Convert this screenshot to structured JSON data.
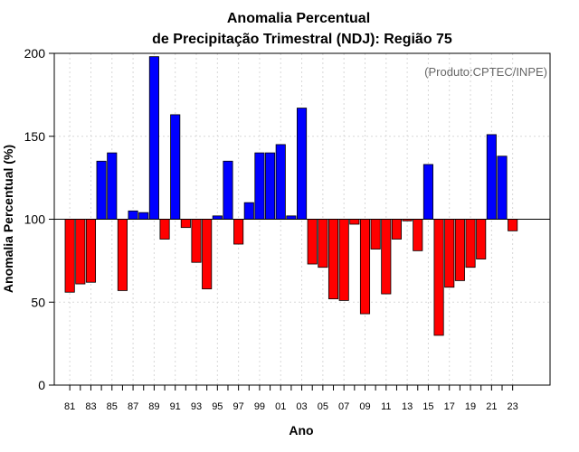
{
  "chart_data": {
    "type": "bar",
    "title": [
      "Anomalia Percentual",
      "de Precipitação Trimestral (NDJ): Região 75"
    ],
    "credit": "(Produto:CPTEC/INPE)",
    "xlabel": "Ano",
    "ylabel": "Anomalia Percentual (%)",
    "ylim": [
      0,
      200
    ],
    "yticks": [
      "0",
      "50",
      "100",
      "150",
      "200"
    ],
    "baseline": 100,
    "grid": true,
    "colors": {
      "above": "#0000ff",
      "below": "#ff0000",
      "grid": "#d8d8d8",
      "frame": "#000000"
    },
    "xtick_labels": [
      "81",
      "83",
      "85",
      "87",
      "89",
      "91",
      "93",
      "95",
      "97",
      "99",
      "01",
      "03",
      "05",
      "07",
      "09",
      "11",
      "13",
      "15",
      "17",
      "19",
      "21",
      "23"
    ],
    "categories": [
      "81",
      "82",
      "83",
      "84",
      "85",
      "86",
      "87",
      "88",
      "89",
      "90",
      "91",
      "92",
      "93",
      "94",
      "95",
      "96",
      "97",
      "98",
      "99",
      "00",
      "01",
      "02",
      "03",
      "04",
      "05",
      "06",
      "07",
      "08",
      "09",
      "10",
      "11",
      "12",
      "13",
      "14",
      "15",
      "16",
      "17",
      "18",
      "19",
      "20",
      "21",
      "22",
      "23"
    ],
    "values": [
      56,
      61,
      62,
      135,
      140,
      57,
      105,
      104,
      198,
      88,
      163,
      95,
      74,
      58,
      102,
      135,
      85,
      110,
      140,
      140,
      145,
      102,
      167,
      73,
      71,
      52,
      51,
      97,
      43,
      82,
      55,
      88,
      99,
      81,
      133,
      30,
      59,
      63,
      71,
      76,
      151,
      138,
      93
    ]
  }
}
